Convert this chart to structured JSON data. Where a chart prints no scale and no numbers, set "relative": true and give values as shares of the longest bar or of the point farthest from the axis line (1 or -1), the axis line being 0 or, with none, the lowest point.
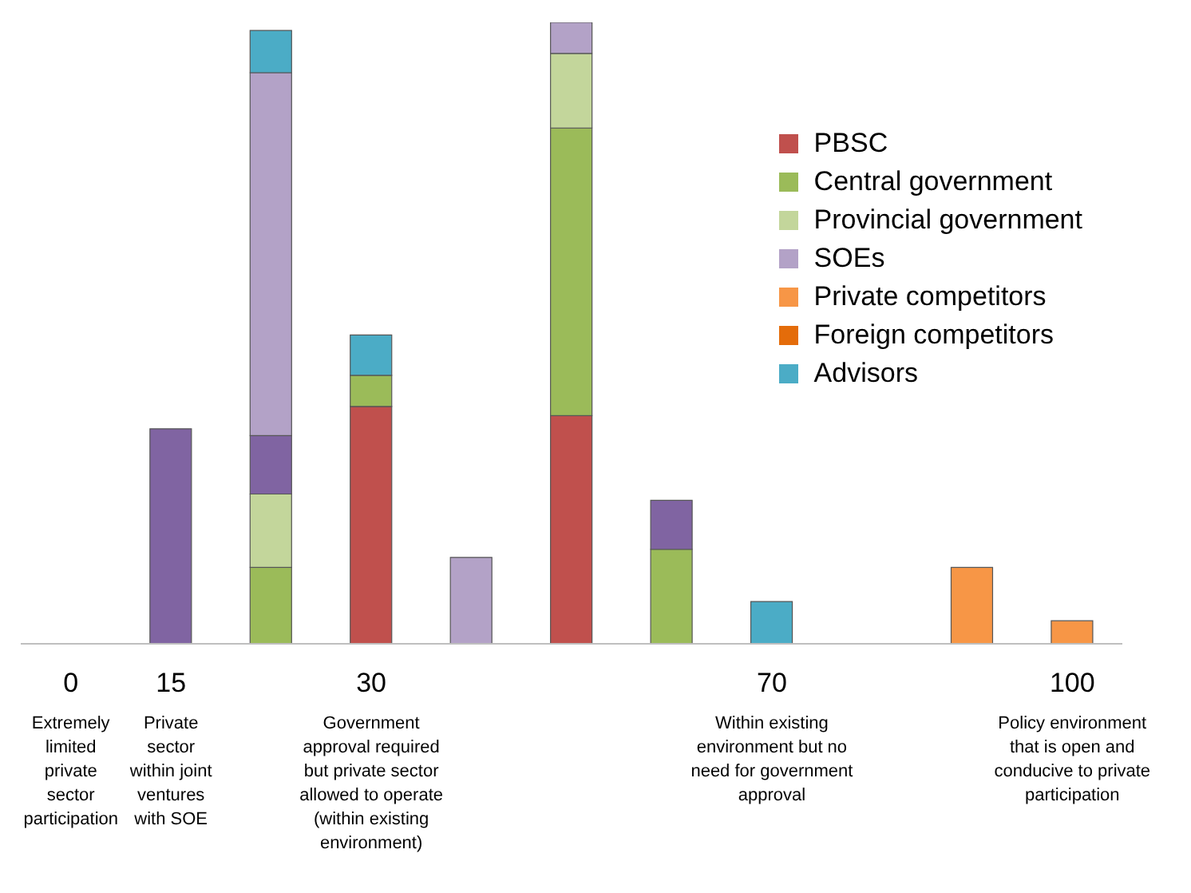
{
  "chart_data": {
    "type": "bar",
    "stacked": true,
    "relative": true,
    "legend": "top right",
    "categories": [
      "0\nExtremely\nlimited\nprivate\nsector\nparticipation",
      "15\nPrivate\nsector\nwithin joint\nventures\nwith SOE",
      null,
      "30\nGovernment\napproval required\nbut private sector\nallowed to operate\n(within existing\nenvironment)",
      null,
      null,
      null,
      "70\nWithin existing\nenvironment but no\nneed for government\napproval",
      null,
      null,
      "100\nPolicy environment\nthat is open and\nconducive to private\nparticipation"
    ],
    "series": [
      {
        "name": "PBSC",
        "color": "#c0504d",
        "values": [
          null,
          null,
          null,
          0.382,
          null,
          0.367,
          null,
          null,
          null,
          null,
          null
        ]
      },
      {
        "name": "Central government",
        "color": "#9bbb59",
        "values": [
          null,
          null,
          0.123,
          0.05,
          null,
          0.463,
          0.152,
          null,
          null,
          null,
          null
        ]
      },
      {
        "name": "Provincial government",
        "color": "#c3d69b",
        "values": [
          null,
          null,
          0.118,
          null,
          null,
          0.12,
          null,
          null,
          null,
          null,
          null
        ]
      },
      {
        "color": "#8064a2",
        "values": [
          null,
          0.346,
          0.094,
          null,
          null,
          null,
          0.079,
          null,
          null,
          null,
          null
        ]
      },
      {
        "name": "SOEs",
        "color": "#b3a2c7",
        "values": [
          null,
          null,
          0.584,
          null,
          0.139,
          0.05,
          null,
          null,
          null,
          null,
          null
        ]
      },
      {
        "name": "Private competitors",
        "color": "#f79646",
        "values": [
          null,
          null,
          null,
          null,
          null,
          null,
          null,
          null,
          null,
          0.123,
          0.037
        ]
      },
      {
        "name": "Foreign competitors",
        "color": "#e46c0a",
        "values": [
          null,
          null,
          null,
          null,
          null,
          null,
          null,
          null,
          null,
          null,
          null
        ]
      },
      {
        "name": "Advisors",
        "color": "#4bacc6",
        "values": [
          null,
          null,
          0.068,
          0.065,
          null,
          null,
          null,
          0.068,
          null,
          null,
          null
        ]
      }
    ]
  }
}
